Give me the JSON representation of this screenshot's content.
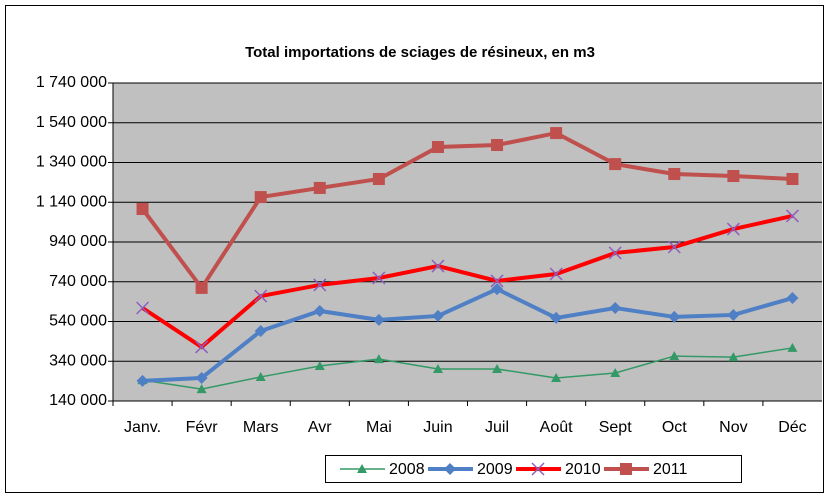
{
  "chart_data": {
    "type": "line",
    "title": "Total importations de sciages de résineux, en m3",
    "categories": [
      "Janv.",
      "Févr",
      "Mars",
      "Avr",
      "Mai",
      "Juin",
      "Juil",
      "Août",
      "Sept",
      "Oct",
      "Nov",
      "Déc"
    ],
    "series": [
      {
        "name": "2008",
        "color": "#339966",
        "values": [
          245000,
          200000,
          261000,
          316000,
          351000,
          301000,
          301000,
          256000,
          281000,
          366000,
          361000,
          407000
        ]
      },
      {
        "name": "2009",
        "color": "#4f7fc4",
        "values": [
          241000,
          256000,
          492000,
          593000,
          548000,
          568000,
          703000,
          558000,
          608000,
          563000,
          573000,
          658000
        ]
      },
      {
        "name": "2010",
        "color": "#ff0000",
        "values": [
          608000,
          412000,
          668000,
          724000,
          759000,
          819000,
          744000,
          779000,
          885000,
          915000,
          1005000,
          1071000
        ]
      },
      {
        "name": "2011",
        "color": "#c0504d",
        "values": [
          1106000,
          709000,
          1166000,
          1212000,
          1257000,
          1418000,
          1428000,
          1488000,
          1332000,
          1282000,
          1272000,
          1257000
        ]
      }
    ],
    "ylim": [
      140000,
      1740000
    ],
    "yticks": [
      {
        "value": 140000,
        "label": "140 000"
      },
      {
        "value": 340000,
        "label": "340 000"
      },
      {
        "value": 540000,
        "label": "540 000"
      },
      {
        "value": 740000,
        "label": "740 000"
      },
      {
        "value": 940000,
        "label": "940 000"
      },
      {
        "value": 1140000,
        "label": "1 140 000"
      },
      {
        "value": 1340000,
        "label": "1 340 000"
      },
      {
        "value": 1540000,
        "label": "1 540 000"
      },
      {
        "value": 1740000,
        "label": "1 740 000"
      }
    ],
    "grid": true
  }
}
